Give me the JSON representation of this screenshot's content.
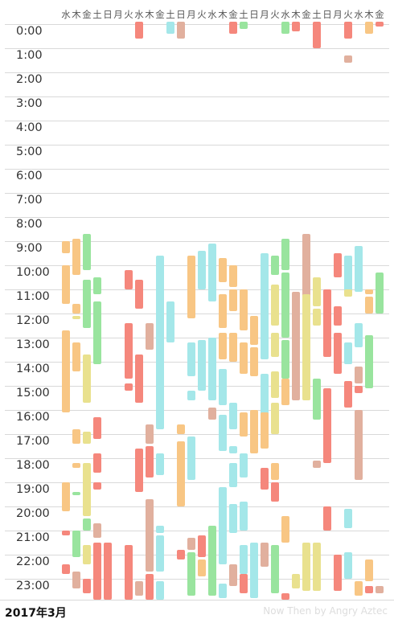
{
  "days": [
    "水",
    "木",
    "金",
    "土",
    "日",
    "月",
    "火",
    "水",
    "木",
    "金",
    "土",
    "日",
    "月",
    "火",
    "水",
    "木",
    "金",
    "土",
    "日",
    "月",
    "火",
    "水",
    "木",
    "金",
    "土",
    "日",
    "月",
    "火",
    "水",
    "木",
    "金"
  ],
  "hours": [
    "0:00",
    "1:00",
    "2:00",
    "3:00",
    "4:00",
    "5:00",
    "6:00",
    "7:00",
    "8:00",
    "9:00",
    "10:00",
    "11:00",
    "12:00",
    "13:00",
    "14:00",
    "15:00",
    "16:00",
    "17:00",
    "18:00",
    "19:00",
    "20:00",
    "21:00",
    "22:00",
    "23:00"
  ],
  "footer": {
    "month": "2017年3月",
    "credit": "Now Then by Angry Aztec"
  },
  "colors": {
    "orange": "#f8c684",
    "green": "#99e49e",
    "yellow": "#e9e18e",
    "red": "#f5877c",
    "pink": "#e1b09e",
    "cyan": "#a4e7e9"
  },
  "sessions": [
    {
      "day": 0,
      "start": 9.0,
      "end": 9.5,
      "color": "orange"
    },
    {
      "day": 0,
      "start": 10.0,
      "end": 11.6,
      "color": "orange"
    },
    {
      "day": 0,
      "start": 12.7,
      "end": 16.1,
      "color": "orange"
    },
    {
      "day": 0,
      "start": 19.0,
      "end": 20.2,
      "color": "orange"
    },
    {
      "day": 0,
      "start": 21.0,
      "end": 21.2,
      "color": "red"
    },
    {
      "day": 0,
      "start": 22.4,
      "end": 22.8,
      "color": "red"
    },
    {
      "day": 1,
      "start": 8.9,
      "end": 10.4,
      "color": "orange"
    },
    {
      "day": 1,
      "start": 11.6,
      "end": 12.0,
      "color": "orange"
    },
    {
      "day": 1,
      "start": 12.1,
      "end": 12.2,
      "color": "yellow"
    },
    {
      "day": 1,
      "start": 13.2,
      "end": 14.4,
      "color": "orange"
    },
    {
      "day": 1,
      "start": 16.8,
      "end": 17.4,
      "color": "orange"
    },
    {
      "day": 1,
      "start": 18.2,
      "end": 18.4,
      "color": "orange"
    },
    {
      "day": 1,
      "start": 19.4,
      "end": 19.5,
      "color": "green"
    },
    {
      "day": 1,
      "start": 21.0,
      "end": 22.1,
      "color": "green"
    },
    {
      "day": 1,
      "start": 22.7,
      "end": 23.4,
      "color": "pink"
    },
    {
      "day": 2,
      "start": 8.7,
      "end": 10.2,
      "color": "green"
    },
    {
      "day": 2,
      "start": 10.6,
      "end": 12.6,
      "color": "green"
    },
    {
      "day": 2,
      "start": 13.7,
      "end": 15.7,
      "color": "yellow"
    },
    {
      "day": 2,
      "start": 16.9,
      "end": 17.4,
      "color": "yellow"
    },
    {
      "day": 2,
      "start": 18.2,
      "end": 20.4,
      "color": "yellow"
    },
    {
      "day": 2,
      "start": 20.5,
      "end": 21.0,
      "color": "green"
    },
    {
      "day": 2,
      "start": 21.6,
      "end": 22.4,
      "color": "yellow"
    },
    {
      "day": 2,
      "start": 23.0,
      "end": 23.6,
      "color": "red"
    },
    {
      "day": 3,
      "start": 10.5,
      "end": 11.2,
      "color": "green"
    },
    {
      "day": 3,
      "start": 11.5,
      "end": 14.1,
      "color": "green"
    },
    {
      "day": 3,
      "start": 16.3,
      "end": 17.2,
      "color": "red"
    },
    {
      "day": 3,
      "start": 17.8,
      "end": 18.6,
      "color": "red"
    },
    {
      "day": 3,
      "start": 19.0,
      "end": 19.3,
      "color": "red"
    },
    {
      "day": 3,
      "start": 20.7,
      "end": 21.3,
      "color": "pink"
    },
    {
      "day": 3,
      "start": 21.5,
      "end": 23.9,
      "color": "red"
    },
    {
      "day": 4,
      "start": 21.5,
      "end": 23.9,
      "color": "red"
    },
    {
      "day": 6,
      "start": 10.2,
      "end": 11.0,
      "color": "red"
    },
    {
      "day": 6,
      "start": 12.4,
      "end": 14.7,
      "color": "red"
    },
    {
      "day": 6,
      "start": 14.9,
      "end": 15.2,
      "color": "red"
    },
    {
      "day": 6,
      "start": 21.6,
      "end": 23.9,
      "color": "red"
    },
    {
      "day": 7,
      "start": -0.1,
      "end": 0.6,
      "color": "red"
    },
    {
      "day": 7,
      "start": 10.6,
      "end": 11.8,
      "color": "red"
    },
    {
      "day": 7,
      "start": 13.7,
      "end": 15.7,
      "color": "red"
    },
    {
      "day": 7,
      "start": 17.6,
      "end": 19.4,
      "color": "red"
    },
    {
      "day": 7,
      "start": 23.1,
      "end": 23.7,
      "color": "pink"
    },
    {
      "day": 8,
      "start": 12.4,
      "end": 13.5,
      "color": "pink"
    },
    {
      "day": 8,
      "start": 16.6,
      "end": 17.4,
      "color": "pink"
    },
    {
      "day": 8,
      "start": 17.5,
      "end": 18.8,
      "color": "red"
    },
    {
      "day": 8,
      "start": 19.7,
      "end": 22.7,
      "color": "pink"
    },
    {
      "day": 8,
      "start": 22.8,
      "end": 23.9,
      "color": "red"
    },
    {
      "day": 9,
      "start": 9.6,
      "end": 16.8,
      "color": "cyan"
    },
    {
      "day": 9,
      "start": 17.8,
      "end": 18.7,
      "color": "cyan"
    },
    {
      "day": 9,
      "start": 20.8,
      "end": 21.1,
      "color": "cyan"
    },
    {
      "day": 9,
      "start": 21.2,
      "end": 22.7,
      "color": "cyan"
    },
    {
      "day": 9,
      "start": 23.1,
      "end": 23.9,
      "color": "cyan"
    },
    {
      "day": 10,
      "start": -0.1,
      "end": 0.4,
      "color": "cyan"
    },
    {
      "day": 10,
      "start": 11.5,
      "end": 13.2,
      "color": "cyan"
    },
    {
      "day": 11,
      "start": -0.1,
      "end": 0.6,
      "color": "pink"
    },
    {
      "day": 11,
      "start": 16.6,
      "end": 17.0,
      "color": "orange"
    },
    {
      "day": 11,
      "start": 17.3,
      "end": 20.0,
      "color": "orange"
    },
    {
      "day": 11,
      "start": 21.8,
      "end": 22.2,
      "color": "red"
    },
    {
      "day": 12,
      "start": 9.6,
      "end": 12.2,
      "color": "orange"
    },
    {
      "day": 12,
      "start": 13.2,
      "end": 14.6,
      "color": "cyan"
    },
    {
      "day": 12,
      "start": 15.2,
      "end": 15.6,
      "color": "cyan"
    },
    {
      "day": 12,
      "start": 17.1,
      "end": 18.9,
      "color": "cyan"
    },
    {
      "day": 12,
      "start": 21.3,
      "end": 21.8,
      "color": "pink"
    },
    {
      "day": 12,
      "start": 21.9,
      "end": 23.7,
      "color": "green"
    },
    {
      "day": 13,
      "start": 9.4,
      "end": 11.0,
      "color": "cyan"
    },
    {
      "day": 13,
      "start": 13.1,
      "end": 15.2,
      "color": "cyan"
    },
    {
      "day": 13,
      "start": 21.2,
      "end": 22.1,
      "color": "red"
    },
    {
      "day": 13,
      "start": 22.2,
      "end": 22.9,
      "color": "orange"
    },
    {
      "day": 14,
      "start": 9.1,
      "end": 11.5,
      "color": "cyan"
    },
    {
      "day": 14,
      "start": 13.0,
      "end": 15.6,
      "color": "cyan"
    },
    {
      "day": 14,
      "start": 15.9,
      "end": 16.4,
      "color": "pink"
    },
    {
      "day": 14,
      "start": 20.8,
      "end": 23.7,
      "color": "green"
    },
    {
      "day": 15,
      "start": 9.7,
      "end": 10.7,
      "color": "orange"
    },
    {
      "day": 15,
      "start": 11.2,
      "end": 12.6,
      "color": "orange"
    },
    {
      "day": 15,
      "start": 12.8,
      "end": 13.9,
      "color": "orange"
    },
    {
      "day": 15,
      "start": 14.3,
      "end": 15.8,
      "color": "cyan"
    },
    {
      "day": 15,
      "start": 16.2,
      "end": 17.7,
      "color": "cyan"
    },
    {
      "day": 15,
      "start": 19.2,
      "end": 22.4,
      "color": "cyan"
    },
    {
      "day": 15,
      "start": 23.2,
      "end": 23.8,
      "color": "cyan"
    },
    {
      "day": 16,
      "start": -0.1,
      "end": 0.4,
      "color": "red"
    },
    {
      "day": 16,
      "start": 10.0,
      "end": 10.9,
      "color": "orange"
    },
    {
      "day": 16,
      "start": 11.0,
      "end": 11.9,
      "color": "orange"
    },
    {
      "day": 16,
      "start": 12.8,
      "end": 14.0,
      "color": "orange"
    },
    {
      "day": 16,
      "start": 15.7,
      "end": 16.8,
      "color": "cyan"
    },
    {
      "day": 16,
      "start": 17.5,
      "end": 17.8,
      "color": "cyan"
    },
    {
      "day": 16,
      "start": 18.2,
      "end": 19.2,
      "color": "cyan"
    },
    {
      "day": 16,
      "start": 19.9,
      "end": 21.1,
      "color": "cyan"
    },
    {
      "day": 16,
      "start": 22.4,
      "end": 23.3,
      "color": "pink"
    },
    {
      "day": 17,
      "start": -0.1,
      "end": 0.2,
      "color": "green"
    },
    {
      "day": 17,
      "start": 11.0,
      "end": 12.7,
      "color": "orange"
    },
    {
      "day": 17,
      "start": 13.2,
      "end": 14.5,
      "color": "orange"
    },
    {
      "day": 17,
      "start": 16.1,
      "end": 17.1,
      "color": "orange"
    },
    {
      "day": 17,
      "start": 17.8,
      "end": 18.8,
      "color": "cyan"
    },
    {
      "day": 17,
      "start": 19.8,
      "end": 21.0,
      "color": "cyan"
    },
    {
      "day": 17,
      "start": 21.6,
      "end": 22.8,
      "color": "cyan"
    },
    {
      "day": 17,
      "start": 22.8,
      "end": 23.6,
      "color": "red"
    },
    {
      "day": 18,
      "start": 12.1,
      "end": 13.3,
      "color": "orange"
    },
    {
      "day": 18,
      "start": 13.4,
      "end": 14.6,
      "color": "orange"
    },
    {
      "day": 18,
      "start": 16.0,
      "end": 17.8,
      "color": "orange"
    },
    {
      "day": 18,
      "start": 21.5,
      "end": 23.8,
      "color": "cyan"
    },
    {
      "day": 19,
      "start": 9.5,
      "end": 13.9,
      "color": "cyan"
    },
    {
      "day": 19,
      "start": 14.5,
      "end": 16.2,
      "color": "cyan"
    },
    {
      "day": 19,
      "start": 16.1,
      "end": 17.6,
      "color": "orange"
    },
    {
      "day": 19,
      "start": 18.4,
      "end": 19.3,
      "color": "red"
    },
    {
      "day": 19,
      "start": 21.5,
      "end": 22.5,
      "color": "pink"
    },
    {
      "day": 20,
      "start": 9.6,
      "end": 10.4,
      "color": "green"
    },
    {
      "day": 20,
      "start": 10.8,
      "end": 12.5,
      "color": "yellow"
    },
    {
      "day": 20,
      "start": 12.8,
      "end": 13.8,
      "color": "yellow"
    },
    {
      "day": 20,
      "start": 14.4,
      "end": 15.5,
      "color": "yellow"
    },
    {
      "day": 20,
      "start": 15.7,
      "end": 17.0,
      "color": "yellow"
    },
    {
      "day": 20,
      "start": 18.2,
      "end": 18.9,
      "color": "orange"
    },
    {
      "day": 20,
      "start": 19.0,
      "end": 19.8,
      "color": "red"
    },
    {
      "day": 20,
      "start": 21.6,
      "end": 23.6,
      "color": "green"
    },
    {
      "day": 21,
      "start": -0.1,
      "end": 0.4,
      "color": "green"
    },
    {
      "day": 21,
      "start": 8.9,
      "end": 10.2,
      "color": "green"
    },
    {
      "day": 21,
      "start": 10.3,
      "end": 13.0,
      "color": "green"
    },
    {
      "day": 21,
      "start": 13.1,
      "end": 14.7,
      "color": "green"
    },
    {
      "day": 21,
      "start": 14.7,
      "end": 15.8,
      "color": "orange"
    },
    {
      "day": 21,
      "start": 20.4,
      "end": 21.5,
      "color": "orange"
    },
    {
      "day": 21,
      "start": 23.6,
      "end": 23.9,
      "color": "red"
    },
    {
      "day": 22,
      "start": -0.1,
      "end": 0.3,
      "color": "red"
    },
    {
      "day": 22,
      "start": 11.1,
      "end": 15.0,
      "color": "pink"
    },
    {
      "day": 22,
      "start": 14.9,
      "end": 15.6,
      "color": "pink"
    },
    {
      "day": 22,
      "start": 22.8,
      "end": 23.4,
      "color": "yellow"
    },
    {
      "day": 23,
      "start": 8.7,
      "end": 11.3,
      "color": "pink"
    },
    {
      "day": 23,
      "start": 11.2,
      "end": 15.6,
      "color": "yellow"
    },
    {
      "day": 23,
      "start": 21.5,
      "end": 23.5,
      "color": "yellow"
    },
    {
      "day": 24,
      "start": -0.1,
      "end": 1.0,
      "color": "red"
    },
    {
      "day": 24,
      "start": 10.5,
      "end": 11.7,
      "color": "yellow"
    },
    {
      "day": 24,
      "start": 11.8,
      "end": 12.5,
      "color": "yellow"
    },
    {
      "day": 24,
      "start": 14.7,
      "end": 16.4,
      "color": "green"
    },
    {
      "day": 24,
      "start": 18.1,
      "end": 18.4,
      "color": "pink"
    },
    {
      "day": 24,
      "start": 21.5,
      "end": 23.5,
      "color": "yellow"
    },
    {
      "day": 25,
      "start": 11.0,
      "end": 13.8,
      "color": "red"
    },
    {
      "day": 25,
      "start": 15.1,
      "end": 18.2,
      "color": "red"
    },
    {
      "day": 25,
      "start": 20.0,
      "end": 21.0,
      "color": "red"
    },
    {
      "day": 26,
      "start": 9.5,
      "end": 10.5,
      "color": "red"
    },
    {
      "day": 26,
      "start": 11.7,
      "end": 12.5,
      "color": "red"
    },
    {
      "day": 26,
      "start": 12.8,
      "end": 14.5,
      "color": "red"
    },
    {
      "day": 26,
      "start": 22.0,
      "end": 23.5,
      "color": "red"
    },
    {
      "day": 27,
      "start": -0.1,
      "end": 0.6,
      "color": "red"
    },
    {
      "day": 27,
      "start": 1.3,
      "end": 1.6,
      "color": "pink"
    },
    {
      "day": 27,
      "start": 9.6,
      "end": 11.1,
      "color": "cyan"
    },
    {
      "day": 27,
      "start": 11.0,
      "end": 11.3,
      "color": "yellow"
    },
    {
      "day": 27,
      "start": 13.2,
      "end": 14.1,
      "color": "cyan"
    },
    {
      "day": 27,
      "start": 14.8,
      "end": 15.9,
      "color": "red"
    },
    {
      "day": 27,
      "start": 20.1,
      "end": 20.9,
      "color": "cyan"
    },
    {
      "day": 27,
      "start": 21.9,
      "end": 23.0,
      "color": "cyan"
    },
    {
      "day": 28,
      "start": 9.2,
      "end": 11.1,
      "color": "cyan"
    },
    {
      "day": 28,
      "start": 12.4,
      "end": 13.4,
      "color": "cyan"
    },
    {
      "day": 28,
      "start": 14.2,
      "end": 14.9,
      "color": "pink"
    },
    {
      "day": 28,
      "start": 15.0,
      "end": 15.3,
      "color": "red"
    },
    {
      "day": 28,
      "start": 16.0,
      "end": 18.9,
      "color": "pink"
    },
    {
      "day": 28,
      "start": 23.1,
      "end": 23.7,
      "color": "orange"
    },
    {
      "day": 29,
      "start": -0.1,
      "end": 0.4,
      "color": "orange"
    },
    {
      "day": 29,
      "start": 11.0,
      "end": 11.2,
      "color": "orange"
    },
    {
      "day": 29,
      "start": 11.3,
      "end": 12.0,
      "color": "orange"
    },
    {
      "day": 29,
      "start": 12.9,
      "end": 15.1,
      "color": "green"
    },
    {
      "day": 29,
      "start": 22.2,
      "end": 23.1,
      "color": "orange"
    },
    {
      "day": 29,
      "start": 23.3,
      "end": 23.6,
      "color": "red"
    },
    {
      "day": 30,
      "start": -0.1,
      "end": 0.1,
      "color": "red"
    },
    {
      "day": 30,
      "start": 10.3,
      "end": 12.0,
      "color": "green"
    },
    {
      "day": 30,
      "start": 23.3,
      "end": 23.6,
      "color": "pink"
    }
  ]
}
